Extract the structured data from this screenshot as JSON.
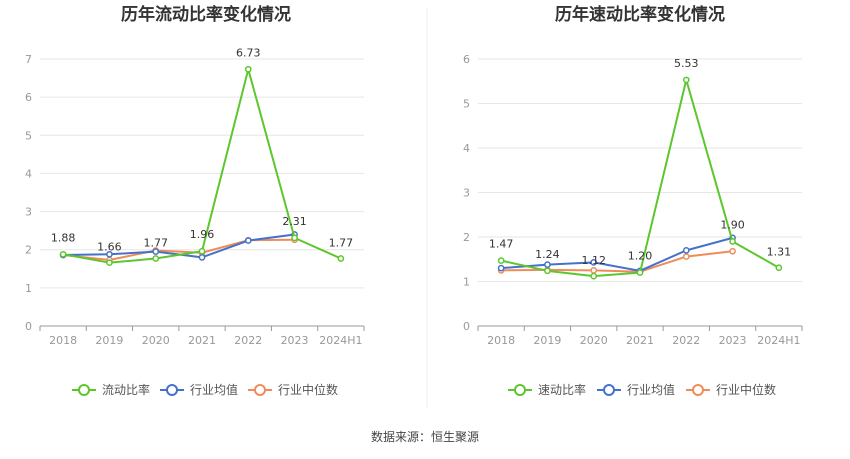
{
  "chart_data": [
    {
      "type": "line",
      "title": "历年流动比率变化情况",
      "categories": [
        "2018",
        "2019",
        "2020",
        "2021",
        "2022",
        "2023",
        "2024H1"
      ],
      "ylim": [
        0,
        7
      ],
      "yticks": [
        0,
        1,
        2,
        3,
        4,
        5,
        6,
        7
      ],
      "grid": true,
      "legend_position": "bottom",
      "series": [
        {
          "name": "流动比率",
          "color": "#5cc72d",
          "values": [
            1.88,
            1.66,
            1.77,
            1.96,
            6.73,
            2.31,
            1.77
          ],
          "labels": [
            "1.88",
            "1.66",
            "1.77",
            "1.96",
            "6.73",
            "2.31",
            "1.77"
          ]
        },
        {
          "name": "行业均值",
          "color": "#4472ca",
          "values": [
            1.86,
            1.88,
            1.95,
            1.8,
            2.24,
            2.4,
            null
          ]
        },
        {
          "name": "行业中位数",
          "color": "#f08c5a",
          "values": [
            1.86,
            1.73,
            1.98,
            1.92,
            2.25,
            2.26,
            null
          ]
        }
      ]
    },
    {
      "type": "line",
      "title": "历年速动比率变化情况",
      "categories": [
        "2018",
        "2019",
        "2020",
        "2021",
        "2022",
        "2023",
        "2024H1"
      ],
      "ylim": [
        0,
        6
      ],
      "yticks": [
        0,
        1,
        2,
        3,
        4,
        5,
        6
      ],
      "grid": true,
      "legend_position": "bottom",
      "series": [
        {
          "name": "速动比率",
          "color": "#5cc72d",
          "values": [
            1.47,
            1.24,
            1.12,
            1.2,
            5.53,
            1.9,
            1.31
          ],
          "labels": [
            "1.47",
            "1.24",
            "1.12",
            "1.20",
            "5.53",
            "1.90",
            "1.31"
          ]
        },
        {
          "name": "行业均值",
          "color": "#4472ca",
          "values": [
            1.3,
            1.38,
            1.43,
            1.24,
            1.7,
            1.98,
            null
          ]
        },
        {
          "name": "行业中位数",
          "color": "#f08c5a",
          "values": [
            1.25,
            1.26,
            1.25,
            1.22,
            1.56,
            1.68,
            null
          ]
        }
      ]
    }
  ],
  "footer": {
    "source": "数据来源：恒生聚源"
  }
}
